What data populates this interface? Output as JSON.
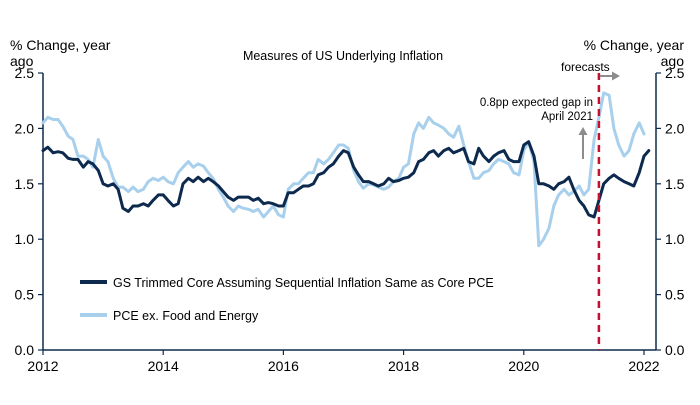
{
  "chart_data": {
    "type": "line",
    "title": "Measures of US Underlying Inflation",
    "ylabel_left": "% Change, year ago",
    "ylabel_right": "% Change, year ago",
    "ylabel_left_lines": [
      "% Change, year",
      "ago"
    ],
    "ylabel_right_lines": [
      "% Change, year",
      "ago"
    ],
    "xlim": [
      2012.0,
      2022.2
    ],
    "ylim": [
      0.0,
      2.5
    ],
    "x_ticks": [
      2012,
      2014,
      2016,
      2018,
      2020,
      2022
    ],
    "x_tick_labels": [
      "2012",
      "2014",
      "2016",
      "2018",
      "2020",
      "2022"
    ],
    "y_ticks": [
      0.0,
      0.5,
      1.0,
      1.5,
      2.0,
      2.5
    ],
    "y_tick_labels": [
      "0.0",
      "0.5",
      "1.0",
      "1.5",
      "2.0",
      "2.5"
    ],
    "series": [
      {
        "name": "PCE ex. Food and Energy",
        "color": "#a8d0ec",
        "points": [
          [
            2012.0,
            2.05
          ],
          [
            2012.08,
            2.1
          ],
          [
            2012.17,
            2.08
          ],
          [
            2012.25,
            2.08
          ],
          [
            2012.33,
            2.02
          ],
          [
            2012.42,
            1.93
          ],
          [
            2012.5,
            1.9
          ],
          [
            2012.58,
            1.75
          ],
          [
            2012.67,
            1.75
          ],
          [
            2012.75,
            1.72
          ],
          [
            2012.83,
            1.65
          ],
          [
            2012.92,
            1.9
          ],
          [
            2013.0,
            1.75
          ],
          [
            2013.08,
            1.7
          ],
          [
            2013.17,
            1.55
          ],
          [
            2013.25,
            1.47
          ],
          [
            2013.33,
            1.47
          ],
          [
            2013.42,
            1.43
          ],
          [
            2013.5,
            1.47
          ],
          [
            2013.58,
            1.43
          ],
          [
            2013.67,
            1.45
          ],
          [
            2013.75,
            1.52
          ],
          [
            2013.83,
            1.55
          ],
          [
            2013.92,
            1.53
          ],
          [
            2014.0,
            1.56
          ],
          [
            2014.08,
            1.52
          ],
          [
            2014.17,
            1.5
          ],
          [
            2014.25,
            1.6
          ],
          [
            2014.33,
            1.65
          ],
          [
            2014.42,
            1.7
          ],
          [
            2014.5,
            1.65
          ],
          [
            2014.58,
            1.68
          ],
          [
            2014.67,
            1.66
          ],
          [
            2014.75,
            1.6
          ],
          [
            2014.83,
            1.55
          ],
          [
            2014.92,
            1.45
          ],
          [
            2015.0,
            1.38
          ],
          [
            2015.08,
            1.3
          ],
          [
            2015.17,
            1.25
          ],
          [
            2015.25,
            1.3
          ],
          [
            2015.33,
            1.28
          ],
          [
            2015.42,
            1.27
          ],
          [
            2015.5,
            1.25
          ],
          [
            2015.58,
            1.27
          ],
          [
            2015.67,
            1.2
          ],
          [
            2015.75,
            1.25
          ],
          [
            2015.83,
            1.3
          ],
          [
            2015.92,
            1.22
          ],
          [
            2016.0,
            1.2
          ],
          [
            2016.08,
            1.45
          ],
          [
            2016.17,
            1.5
          ],
          [
            2016.25,
            1.5
          ],
          [
            2016.33,
            1.55
          ],
          [
            2016.42,
            1.6
          ],
          [
            2016.5,
            1.6
          ],
          [
            2016.58,
            1.72
          ],
          [
            2016.67,
            1.68
          ],
          [
            2016.75,
            1.72
          ],
          [
            2016.83,
            1.78
          ],
          [
            2016.92,
            1.85
          ],
          [
            2017.0,
            1.85
          ],
          [
            2017.08,
            1.82
          ],
          [
            2017.17,
            1.62
          ],
          [
            2017.25,
            1.52
          ],
          [
            2017.33,
            1.46
          ],
          [
            2017.42,
            1.5
          ],
          [
            2017.5,
            1.49
          ],
          [
            2017.58,
            1.47
          ],
          [
            2017.67,
            1.45
          ],
          [
            2017.75,
            1.47
          ],
          [
            2017.83,
            1.52
          ],
          [
            2017.92,
            1.55
          ],
          [
            2018.0,
            1.65
          ],
          [
            2018.08,
            1.68
          ],
          [
            2018.17,
            1.95
          ],
          [
            2018.25,
            2.05
          ],
          [
            2018.33,
            2.0
          ],
          [
            2018.42,
            2.1
          ],
          [
            2018.5,
            2.05
          ],
          [
            2018.58,
            2.03
          ],
          [
            2018.67,
            2.0
          ],
          [
            2018.75,
            1.95
          ],
          [
            2018.83,
            1.92
          ],
          [
            2018.92,
            2.02
          ],
          [
            2019.0,
            1.85
          ],
          [
            2019.08,
            1.7
          ],
          [
            2019.17,
            1.55
          ],
          [
            2019.25,
            1.55
          ],
          [
            2019.33,
            1.6
          ],
          [
            2019.42,
            1.62
          ],
          [
            2019.5,
            1.68
          ],
          [
            2019.58,
            1.72
          ],
          [
            2019.67,
            1.7
          ],
          [
            2019.75,
            1.68
          ],
          [
            2019.83,
            1.6
          ],
          [
            2019.92,
            1.58
          ],
          [
            2020.0,
            1.8
          ],
          [
            2020.08,
            1.88
          ],
          [
            2020.17,
            1.7
          ],
          [
            2020.25,
            0.94
          ],
          [
            2020.33,
            1.0
          ],
          [
            2020.42,
            1.1
          ],
          [
            2020.5,
            1.3
          ],
          [
            2020.58,
            1.4
          ],
          [
            2020.67,
            1.45
          ],
          [
            2020.75,
            1.4
          ],
          [
            2020.83,
            1.43
          ],
          [
            2020.92,
            1.48
          ],
          [
            2021.0,
            1.4
          ],
          [
            2021.08,
            1.45
          ],
          [
            2021.17,
            1.9
          ],
          [
            2021.25,
            2.1
          ],
          [
            2021.33,
            2.32
          ],
          [
            2021.42,
            2.3
          ],
          [
            2021.5,
            2.0
          ],
          [
            2021.58,
            1.85
          ],
          [
            2021.67,
            1.75
          ],
          [
            2021.75,
            1.8
          ],
          [
            2021.83,
            1.95
          ],
          [
            2021.92,
            2.05
          ],
          [
            2022.0,
            1.95
          ]
        ]
      },
      {
        "name": "GS Trimmed Core Assuming Sequential Inflation Same as Core PCE",
        "color": "#0d2a4e",
        "points": [
          [
            2012.0,
            1.8
          ],
          [
            2012.08,
            1.83
          ],
          [
            2012.17,
            1.78
          ],
          [
            2012.25,
            1.79
          ],
          [
            2012.33,
            1.78
          ],
          [
            2012.42,
            1.73
          ],
          [
            2012.5,
            1.72
          ],
          [
            2012.58,
            1.72
          ],
          [
            2012.67,
            1.65
          ],
          [
            2012.75,
            1.7
          ],
          [
            2012.83,
            1.68
          ],
          [
            2012.92,
            1.62
          ],
          [
            2013.0,
            1.5
          ],
          [
            2013.08,
            1.48
          ],
          [
            2013.17,
            1.5
          ],
          [
            2013.25,
            1.45
          ],
          [
            2013.33,
            1.28
          ],
          [
            2013.42,
            1.25
          ],
          [
            2013.5,
            1.3
          ],
          [
            2013.58,
            1.3
          ],
          [
            2013.67,
            1.32
          ],
          [
            2013.75,
            1.3
          ],
          [
            2013.83,
            1.35
          ],
          [
            2013.92,
            1.4
          ],
          [
            2014.0,
            1.4
          ],
          [
            2014.08,
            1.35
          ],
          [
            2014.17,
            1.3
          ],
          [
            2014.25,
            1.32
          ],
          [
            2014.33,
            1.5
          ],
          [
            2014.42,
            1.55
          ],
          [
            2014.5,
            1.52
          ],
          [
            2014.58,
            1.56
          ],
          [
            2014.67,
            1.52
          ],
          [
            2014.75,
            1.55
          ],
          [
            2014.83,
            1.52
          ],
          [
            2014.92,
            1.48
          ],
          [
            2015.0,
            1.43
          ],
          [
            2015.08,
            1.38
          ],
          [
            2015.17,
            1.35
          ],
          [
            2015.25,
            1.38
          ],
          [
            2015.33,
            1.38
          ],
          [
            2015.42,
            1.38
          ],
          [
            2015.5,
            1.35
          ],
          [
            2015.58,
            1.37
          ],
          [
            2015.67,
            1.32
          ],
          [
            2015.75,
            1.33
          ],
          [
            2015.83,
            1.32
          ],
          [
            2015.92,
            1.3
          ],
          [
            2016.0,
            1.3
          ],
          [
            2016.08,
            1.42
          ],
          [
            2016.17,
            1.42
          ],
          [
            2016.25,
            1.45
          ],
          [
            2016.33,
            1.48
          ],
          [
            2016.42,
            1.48
          ],
          [
            2016.5,
            1.5
          ],
          [
            2016.58,
            1.58
          ],
          [
            2016.67,
            1.6
          ],
          [
            2016.75,
            1.65
          ],
          [
            2016.83,
            1.68
          ],
          [
            2016.92,
            1.75
          ],
          [
            2017.0,
            1.8
          ],
          [
            2017.08,
            1.78
          ],
          [
            2017.17,
            1.65
          ],
          [
            2017.25,
            1.58
          ],
          [
            2017.33,
            1.52
          ],
          [
            2017.42,
            1.52
          ],
          [
            2017.5,
            1.5
          ],
          [
            2017.58,
            1.48
          ],
          [
            2017.67,
            1.5
          ],
          [
            2017.75,
            1.55
          ],
          [
            2017.83,
            1.52
          ],
          [
            2017.92,
            1.53
          ],
          [
            2018.0,
            1.55
          ],
          [
            2018.08,
            1.56
          ],
          [
            2018.17,
            1.6
          ],
          [
            2018.25,
            1.7
          ],
          [
            2018.33,
            1.72
          ],
          [
            2018.42,
            1.78
          ],
          [
            2018.5,
            1.8
          ],
          [
            2018.58,
            1.75
          ],
          [
            2018.67,
            1.8
          ],
          [
            2018.75,
            1.82
          ],
          [
            2018.83,
            1.78
          ],
          [
            2018.92,
            1.8
          ],
          [
            2019.0,
            1.82
          ],
          [
            2019.08,
            1.7
          ],
          [
            2019.17,
            1.68
          ],
          [
            2019.25,
            1.82
          ],
          [
            2019.33,
            1.75
          ],
          [
            2019.42,
            1.7
          ],
          [
            2019.5,
            1.75
          ],
          [
            2019.58,
            1.78
          ],
          [
            2019.67,
            1.8
          ],
          [
            2019.75,
            1.72
          ],
          [
            2019.83,
            1.7
          ],
          [
            2019.92,
            1.7
          ],
          [
            2020.0,
            1.85
          ],
          [
            2020.08,
            1.88
          ],
          [
            2020.17,
            1.75
          ],
          [
            2020.25,
            1.5
          ],
          [
            2020.33,
            1.5
          ],
          [
            2020.42,
            1.48
          ],
          [
            2020.5,
            1.45
          ],
          [
            2020.58,
            1.5
          ],
          [
            2020.67,
            1.52
          ],
          [
            2020.75,
            1.56
          ],
          [
            2020.83,
            1.45
          ],
          [
            2020.92,
            1.35
          ],
          [
            2021.0,
            1.3
          ],
          [
            2021.08,
            1.22
          ],
          [
            2021.17,
            1.2
          ],
          [
            2021.25,
            1.35
          ],
          [
            2021.33,
            1.5
          ],
          [
            2021.42,
            1.55
          ],
          [
            2021.5,
            1.58
          ],
          [
            2021.58,
            1.55
          ],
          [
            2021.67,
            1.52
          ],
          [
            2021.75,
            1.5
          ],
          [
            2021.83,
            1.48
          ],
          [
            2021.92,
            1.6
          ],
          [
            2022.0,
            1.75
          ],
          [
            2022.08,
            1.8
          ]
        ]
      }
    ],
    "legend": {
      "placement": "lower-left",
      "entries": [
        {
          "label": "GS Trimmed Core Assuming Sequential Inflation Same as Core PCE",
          "color": "#0d2a4e"
        },
        {
          "label": "PCE ex. Food and Energy",
          "color": "#a8d0ec"
        }
      ]
    },
    "forecast_line": {
      "x": 2021.25,
      "color": "#c8102e",
      "style": "dashed"
    },
    "annotations": [
      {
        "id": "forecasts",
        "text": "forecasts"
      },
      {
        "id": "gap",
        "text_lines": [
          "0.8pp expected gap in",
          "April 2021"
        ]
      }
    ],
    "axis_color": "#0d2a4e",
    "grid": false
  }
}
